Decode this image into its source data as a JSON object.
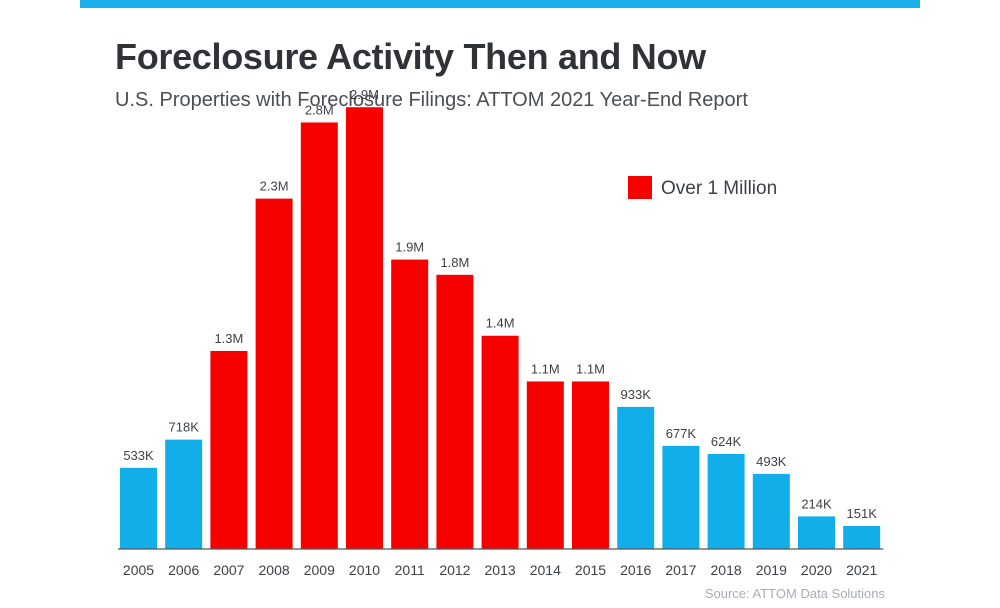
{
  "header": {
    "title": "Foreclosure Activity Then and Now",
    "subtitle": "U.S. Properties with Foreclosure Filings: ATTOM 2021 Year-End Report"
  },
  "footer": {
    "source": "Source: ATTOM Data Solutions"
  },
  "colors": {
    "accent_bar": "#1ab0ea",
    "over_million": "#f60000",
    "under_million": "#11aeea",
    "axis": "#555555",
    "label_text": "#3d4147"
  },
  "chart_data": {
    "type": "bar",
    "title": "Foreclosure Activity Then and Now",
    "subtitle": "U.S. Properties with Foreclosure Filings: ATTOM 2021 Year-End Report",
    "xlabel": "",
    "ylabel": "",
    "ylim": [
      0,
      3000000
    ],
    "grid": false,
    "categories": [
      "2005",
      "2006",
      "2007",
      "2008",
      "2009",
      "2010",
      "2011",
      "2012",
      "2013",
      "2014",
      "2015",
      "2016",
      "2017",
      "2018",
      "2019",
      "2020",
      "2021"
    ],
    "values": [
      533000,
      718000,
      1300000,
      2300000,
      2800000,
      2900000,
      1900000,
      1800000,
      1400000,
      1100000,
      1100000,
      933000,
      677000,
      624000,
      493000,
      214000,
      151000
    ],
    "data_labels": [
      "533K",
      "718K",
      "1.3M",
      "2.3M",
      "2.8M",
      "2.9M",
      "1.9M",
      "1.8M",
      "1.4M",
      "1.1M",
      "1.1M",
      "933K",
      "677K",
      "624K",
      "493K",
      "214K",
      "151K"
    ],
    "highlighted": [
      false,
      false,
      true,
      true,
      true,
      true,
      true,
      true,
      true,
      true,
      true,
      false,
      false,
      false,
      false,
      false,
      false
    ],
    "legend": {
      "position": "top-right",
      "entries": [
        {
          "label": "Over 1 Million",
          "color": "#f60000"
        }
      ]
    }
  }
}
